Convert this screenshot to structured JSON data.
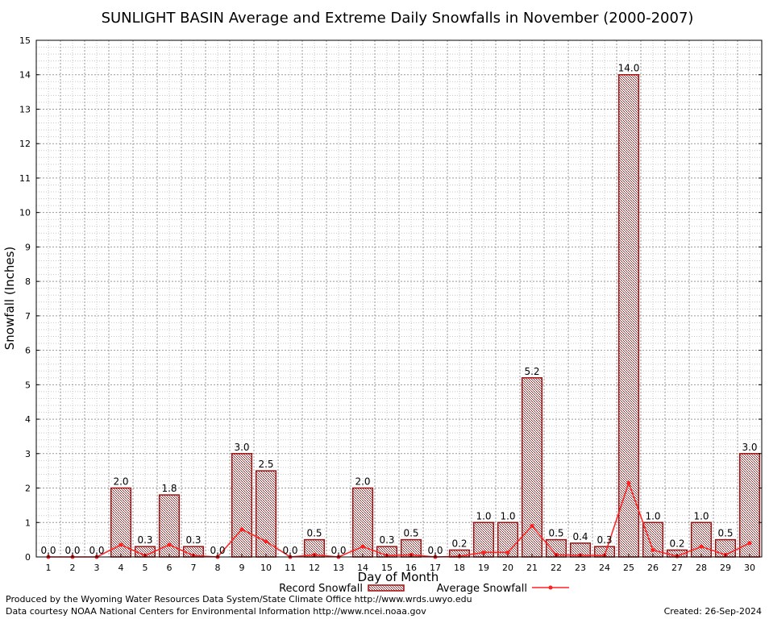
{
  "chart_data": {
    "type": "bar",
    "title": "SUNLIGHT BASIN Average and Extreme Daily Snowfalls in November (2000-2007)",
    "xlabel": "Day of Month",
    "ylabel": "Snowfall (Inches)",
    "ylim": [
      0,
      15
    ],
    "yticks": [
      "0",
      "1",
      "2",
      "3",
      "4",
      "5",
      "6",
      "7",
      "8",
      "9",
      "10",
      "11",
      "12",
      "13",
      "14",
      "15"
    ],
    "categories": [
      "1",
      "2",
      "3",
      "4",
      "5",
      "6",
      "7",
      "8",
      "9",
      "10",
      "11",
      "12",
      "13",
      "14",
      "15",
      "16",
      "17",
      "18",
      "19",
      "20",
      "21",
      "22",
      "23",
      "24",
      "25",
      "26",
      "27",
      "28",
      "29",
      "30"
    ],
    "series": [
      {
        "name": "Record Snowfall",
        "kind": "bar",
        "values": [
          0.0,
          0.0,
          0.0,
          2.0,
          0.3,
          1.8,
          0.3,
          0.0,
          3.0,
          2.5,
          0.0,
          0.5,
          0.0,
          2.0,
          0.3,
          0.5,
          0.0,
          0.2,
          1.0,
          1.0,
          5.2,
          0.5,
          0.4,
          0.3,
          14.0,
          1.0,
          0.2,
          1.0,
          0.5,
          3.0
        ],
        "labels": [
          "0.0",
          "0.0",
          "0.0",
          "2.0",
          "0.3",
          "1.8",
          "0.3",
          "0.0",
          "3.0",
          "2.5",
          "0.0",
          "0.5",
          "0.0",
          "2.0",
          "0.3",
          "0.5",
          "0.0",
          "0.2",
          "1.0",
          "1.0",
          "5.2",
          "0.5",
          "0.4",
          "0.3",
          "14.0",
          "1.0",
          "0.2",
          "1.0",
          "0.5",
          "3.0"
        ],
        "color": "#a01010"
      },
      {
        "name": "Average Snowfall",
        "kind": "line",
        "values": [
          0.0,
          0.0,
          0.0,
          0.35,
          0.04,
          0.35,
          0.04,
          0.0,
          0.8,
          0.45,
          0.0,
          0.06,
          0.0,
          0.3,
          0.04,
          0.06,
          0.0,
          0.02,
          0.13,
          0.13,
          0.9,
          0.06,
          0.05,
          0.04,
          2.15,
          0.2,
          0.02,
          0.3,
          0.06,
          0.4
        ],
        "color": "#ff2020"
      }
    ],
    "grid": true,
    "legend": "bottom-center"
  },
  "footer": {
    "produced_by": "Produced by the Wyoming Water Resources Data System/State Climate Office http://www.wrds.uwyo.edu",
    "courtesy": "Data courtesy NOAA National Centers for Environmental Information http://www.ncei.noaa.gov",
    "created": "Created:  26-Sep-2024"
  }
}
